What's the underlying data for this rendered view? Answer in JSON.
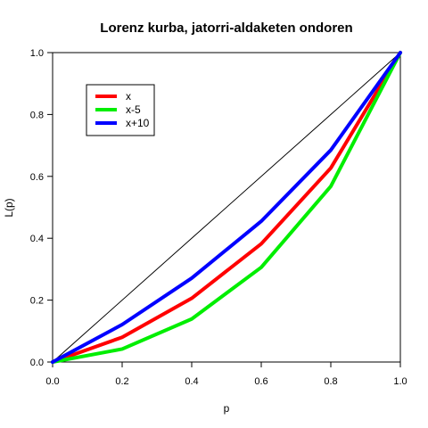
{
  "chart_data": {
    "type": "line",
    "title": "Lorenz kurba, jatorri-aldaketen ondoren",
    "xlabel": "p",
    "ylabel": "L(p)",
    "xlim": [
      0,
      1
    ],
    "ylim": [
      0,
      1
    ],
    "x_ticks": [
      "0.0",
      "0.2",
      "0.4",
      "0.6",
      "0.8",
      "1.0"
    ],
    "y_ticks": [
      "0.0",
      "0.2",
      "0.4",
      "0.6",
      "0.8",
      "1.0"
    ],
    "grid": false,
    "legend_position": "top-left",
    "x": [
      0,
      0.2,
      0.4,
      0.6,
      0.8,
      1.0
    ],
    "series": [
      {
        "name": "x",
        "color": "#ff0000",
        "values": [
          0,
          0.08,
          0.206,
          0.382,
          0.627,
          1.0
        ]
      },
      {
        "name": "x-5",
        "color": "#00ee00",
        "values": [
          0,
          0.042,
          0.139,
          0.306,
          0.568,
          1.0
        ]
      },
      {
        "name": "x+10",
        "color": "#0000ff",
        "values": [
          0,
          0.121,
          0.271,
          0.455,
          0.685,
          1.0
        ]
      }
    ],
    "reference_line": {
      "color": "#000000",
      "from": [
        0,
        0
      ],
      "to": [
        1,
        1
      ]
    }
  }
}
